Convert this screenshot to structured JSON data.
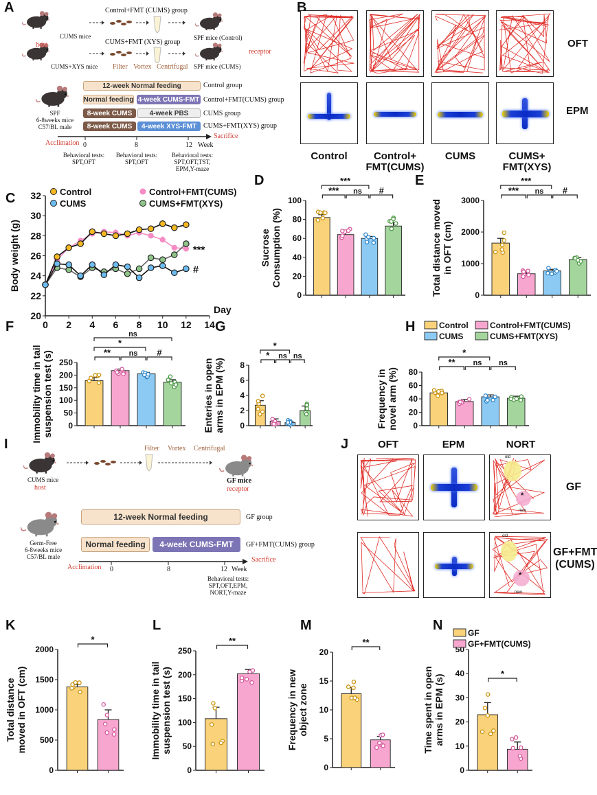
{
  "panel_labels": {
    "A": "A",
    "B": "B",
    "C": "C",
    "D": "D",
    "E": "E",
    "F": "F",
    "G": "G",
    "H": "H",
    "I": "I",
    "J": "J",
    "K": "K",
    "L": "L",
    "M": "M",
    "N": "N"
  },
  "colors": {
    "control": "#f9d27a",
    "control_fmt_cums": "#f7a6cf",
    "cums": "#8ccaf3",
    "cums_fmt_xys": "#a3d59d",
    "host": "#d23b2f",
    "process": "#a0603a",
    "track": "#e0302a"
  },
  "panel_A": {
    "top_group_1": "Control+FMT (CUMS) group",
    "top_group_2": "CUMS+FMT (XYS) group",
    "donor_1": "CUMS mice",
    "donor_2": "CUMS+XYS mice",
    "host": "host",
    "receptor": "receptor",
    "recipient_1": "SPF mice (Control)",
    "recipient_2": "SPF mice (CUMS)",
    "steps": [
      "Filter",
      "Vortex",
      "Centrifugal"
    ],
    "mouse_info": [
      "SPF",
      "6-8weeks mice",
      "C57/BL male"
    ],
    "timeline": [
      {
        "segments": [
          "12-week Normal feeding"
        ],
        "group": "Control group"
      },
      {
        "segments": [
          "Normal feeding",
          "4-week CUMS-FMT"
        ],
        "group": "Control+FMT(CUMS) group"
      },
      {
        "segments": [
          "8-week CUMS",
          "4-week PBS"
        ],
        "group": "CUMS group"
      },
      {
        "segments": [
          "8-week CUMS",
          "4-week XYS-FMT"
        ],
        "group": "CUMS+FMT(XYS) group"
      }
    ],
    "acclimation": "Acclimation",
    "sacrifice": "Sacrifice",
    "weeks": [
      "0",
      "8",
      "12"
    ],
    "week_unit": "Week",
    "tests": [
      [
        "Behavioral tests:",
        "SPT,OFT"
      ],
      [
        "Behavioral tests:",
        "SPT,OFT"
      ],
      [
        "Behavioral tests:",
        "SPT,OFT,TST,",
        "EPM,Y-maze"
      ]
    ]
  },
  "panel_B": {
    "rows": [
      "OFT",
      "EPM"
    ],
    "groups": [
      [
        "Control"
      ],
      [
        "Control+",
        "FMT(CUMS)"
      ],
      [
        "CUMS"
      ],
      [
        "CUMS+",
        "FMT(XYS)"
      ]
    ]
  },
  "panel_I": {
    "steps": [
      "Filter",
      "Vortex",
      "Centrifugal"
    ],
    "donor": "CUMS mice",
    "host": "host",
    "recipient": "GF mice",
    "receptor": "receptor",
    "mouse_info": [
      "Germ-Free",
      "6-8weeks mice",
      "C57/BL male"
    ],
    "timeline": [
      {
        "segments": [
          "12-week Normal feeding"
        ],
        "group": "GF group"
      },
      {
        "segments": [
          "Normal feeding",
          "4-week CUMS-FMT"
        ],
        "group": "GF+FMT(CUMS) group"
      }
    ],
    "acclimation": "Acclimation",
    "sacrifice": "Sacrifice",
    "weeks": [
      "0",
      "8",
      "12"
    ],
    "week_unit": "Week",
    "tests": [
      "Behavioral tests:",
      "SPT,OFT,EPM,",
      "NORT,Y-maze"
    ]
  },
  "panel_J": {
    "columns": [
      "OFT",
      "EPM",
      "NORT"
    ],
    "rows": [
      [
        "GF"
      ],
      [
        "GF+FMT",
        "(CUMS)"
      ]
    ],
    "nort_labels": {
      "old": "old",
      "new": "new",
      "mark": "*"
    }
  },
  "legend_main": [
    "Control",
    "Control+FMT(CUMS)",
    "CUMS",
    "CUMS+FMT(XYS)"
  ],
  "legend_gf": [
    "GF",
    "GF+FMT(CUMS)"
  ],
  "chart_data": [
    {
      "panel": "C",
      "type": "line",
      "xlabel": "Day",
      "ylabel": [
        "Body weight (g)"
      ],
      "xlim": [
        0,
        14
      ],
      "ylim": [
        20,
        32
      ],
      "xticks": [
        0,
        2,
        4,
        6,
        8,
        10,
        12,
        14
      ],
      "yticks": [
        20,
        22,
        24,
        26,
        28,
        30,
        32
      ],
      "grid": false,
      "legend": "top",
      "x": [
        0,
        1,
        2,
        3,
        4,
        5,
        6,
        7,
        8,
        9,
        10,
        11,
        12
      ],
      "series": [
        {
          "name": "Control",
          "color": "#f5b921",
          "values": [
            23.1,
            25.9,
            26.8,
            27.2,
            28.4,
            28.2,
            28.0,
            28.2,
            28.6,
            28.7,
            29.2,
            28.8,
            29.1
          ]
        },
        {
          "name": "Control+FMT(CUMS)",
          "color": "#f58cc4",
          "values": [
            23.1,
            25.6,
            26.8,
            27.5,
            28.2,
            28.4,
            28.3,
            28.0,
            28.3,
            28.0,
            27.6,
            26.8,
            26.7
          ]
        },
        {
          "name": "CUMS",
          "color": "#6cbcf0",
          "values": [
            23.1,
            25.2,
            25.1,
            24.0,
            25.1,
            24.1,
            25.1,
            24.9,
            23.8,
            24.8,
            25.0,
            24.3,
            24.7
          ]
        },
        {
          "name": "CUMS+FMT(XYS)",
          "color": "#8fc48a",
          "values": [
            23.1,
            24.8,
            24.6,
            23.9,
            24.8,
            24.4,
            24.7,
            24.2,
            24.7,
            25.8,
            25.6,
            26.1,
            27.2
          ]
        }
      ],
      "annotations": [
        {
          "series": 1,
          "label": "***"
        },
        {
          "series": 2,
          "label": "#"
        }
      ]
    },
    {
      "panel": "D",
      "type": "bar",
      "ylabel": [
        "Sucrose",
        "Consumption (%)"
      ],
      "ylim": [
        0,
        100
      ],
      "yticks": [
        0,
        20,
        40,
        60,
        80,
        100
      ],
      "values": [
        82,
        64,
        60,
        73
      ],
      "sem": [
        3,
        3,
        2,
        4
      ],
      "brackets": [
        {
          "a": 0,
          "b": 1,
          "label": "***",
          "level": 0
        },
        {
          "a": 1,
          "b": 2,
          "label": "ns",
          "level": 0
        },
        {
          "a": 2,
          "b": 3,
          "label": "#",
          "level": 0
        },
        {
          "a": 0,
          "b": 2,
          "label": "***",
          "level": 1
        }
      ]
    },
    {
      "panel": "E",
      "type": "bar",
      "ylabel": [
        "Total distance moved",
        "in OFT (cm)"
      ],
      "ylim": [
        0,
        3000
      ],
      "yticks": [
        0,
        1000,
        2000,
        3000
      ],
      "values": [
        1650,
        680,
        770,
        1130
      ],
      "sem": [
        150,
        50,
        50,
        60
      ],
      "brackets": [
        {
          "a": 0,
          "b": 1,
          "label": "***",
          "level": 0
        },
        {
          "a": 1,
          "b": 2,
          "label": "ns",
          "level": 0
        },
        {
          "a": 2,
          "b": 3,
          "label": "#",
          "level": 0
        },
        {
          "a": 0,
          "b": 2,
          "label": "***",
          "level": 1
        }
      ]
    },
    {
      "panel": "F",
      "type": "bar",
      "ylabel": [
        "Immobility time in tail",
        "suspension test (s)"
      ],
      "ylim": [
        0,
        250
      ],
      "yticks": [
        0,
        50,
        100,
        150,
        200,
        250
      ],
      "values": [
        178,
        218,
        205,
        172
      ],
      "sem": [
        12,
        6,
        6,
        10
      ],
      "brackets": [
        {
          "a": 0,
          "b": 1,
          "label": "**",
          "level": 0
        },
        {
          "a": 1,
          "b": 2,
          "label": "ns",
          "level": 0
        },
        {
          "a": 2,
          "b": 3,
          "label": "#",
          "level": 0
        },
        {
          "a": 0,
          "b": 2,
          "label": "*",
          "level": 1
        },
        {
          "a": 0,
          "b": 3,
          "label": "ns",
          "level": 2
        }
      ]
    },
    {
      "panel": "G",
      "type": "bar",
      "ylabel": [
        "Enteries in open",
        "arms in EPM (%)"
      ],
      "ylim": [
        0,
        8
      ],
      "yticks": [
        0,
        2,
        4,
        6,
        8
      ],
      "values": [
        2.7,
        0.6,
        0.4,
        2.0
      ],
      "sem": [
        0.6,
        0.3,
        0.15,
        0.6
      ],
      "brackets": [
        {
          "a": 0,
          "b": 1,
          "label": "*",
          "level": 0
        },
        {
          "a": 1,
          "b": 2,
          "label": "ns",
          "level": 0
        },
        {
          "a": 2,
          "b": 3,
          "label": "ns",
          "level": 0
        },
        {
          "a": 0,
          "b": 2,
          "label": "*",
          "level": 1
        }
      ]
    },
    {
      "panel": "H",
      "type": "bar",
      "ylabel": [
        "Frequency in",
        "novel arm (%)"
      ],
      "ylim": [
        0,
        80
      ],
      "yticks": [
        0,
        20,
        40,
        60,
        80
      ],
      "values": [
        49,
        36,
        43,
        41
      ],
      "sem": [
        2,
        3,
        3,
        3
      ],
      "brackets": [
        {
          "a": 0,
          "b": 1,
          "label": "**",
          "level": 0
        },
        {
          "a": 1,
          "b": 2,
          "label": "ns",
          "level": 0
        },
        {
          "a": 2,
          "b": 3,
          "label": "ns",
          "level": 0
        },
        {
          "a": 0,
          "b": 2,
          "label": "*",
          "level": 1
        }
      ]
    },
    {
      "panel": "K",
      "type": "bar",
      "ylabel": [
        "Total distance",
        "moved in OFT (cm)"
      ],
      "ylim": [
        0,
        2000
      ],
      "yticks": [
        0,
        500,
        1000,
        1500,
        2000
      ],
      "values": [
        1380,
        840
      ],
      "sem": [
        40,
        160
      ],
      "brackets": [
        {
          "a": 0,
          "b": 1,
          "label": "*",
          "level": 0
        }
      ]
    },
    {
      "panel": "L",
      "type": "bar",
      "ylabel": [
        "Immobility time in tail",
        "suspension test (s)"
      ],
      "ylim": [
        0,
        250
      ],
      "yticks": [
        0,
        50,
        100,
        150,
        200,
        250
      ],
      "values": [
        108,
        202
      ],
      "sem": [
        24,
        9
      ],
      "brackets": [
        {
          "a": 0,
          "b": 1,
          "label": "**",
          "level": 0
        }
      ]
    },
    {
      "panel": "M",
      "type": "bar",
      "ylabel": [
        "Frequency in new",
        "object zone"
      ],
      "ylim": [
        0,
        20
      ],
      "yticks": [
        0,
        5,
        10,
        15,
        20
      ],
      "values": [
        12.8,
        4.8
      ],
      "sem": [
        1.1,
        0.6
      ],
      "brackets": [
        {
          "a": 0,
          "b": 1,
          "label": "**",
          "level": 0
        }
      ]
    },
    {
      "panel": "N",
      "type": "bar",
      "ylabel": [
        "Time spent in open",
        "arms in EPM (s)"
      ],
      "ylim": [
        0,
        50
      ],
      "yticks": [
        0,
        10,
        20,
        30,
        40,
        50
      ],
      "values": [
        23,
        8.7
      ],
      "sem": [
        5,
        3
      ],
      "brackets": [
        {
          "a": 0,
          "b": 1,
          "label": "*",
          "level": 0
        }
      ]
    }
  ]
}
